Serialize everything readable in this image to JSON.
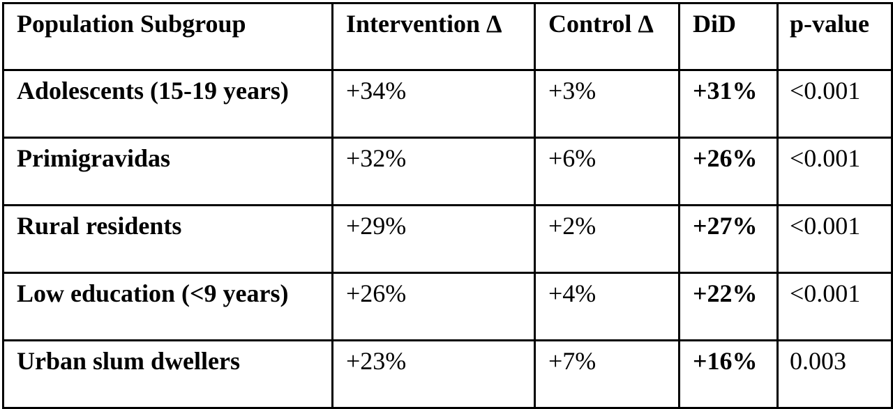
{
  "table": {
    "headers": [
      "Population Subgroup",
      "Intervention Δ",
      "Control Δ",
      "DiD",
      "p-value"
    ],
    "rows": [
      [
        "Adolescents (15-19 years)",
        "+34%",
        "+3%",
        "+31%",
        "<0.001"
      ],
      [
        "Primigravidas",
        "+32%",
        "+6%",
        "+26%",
        "<0.001"
      ],
      [
        "Rural residents",
        "+29%",
        "+2%",
        "+27%",
        "<0.001"
      ],
      [
        "Low education (<9 years)",
        "+26%",
        "+4%",
        "+22%",
        "<0.001"
      ],
      [
        "Urban slum dwellers",
        "+23%",
        "+7%",
        "+16%",
        "0.003"
      ]
    ]
  }
}
